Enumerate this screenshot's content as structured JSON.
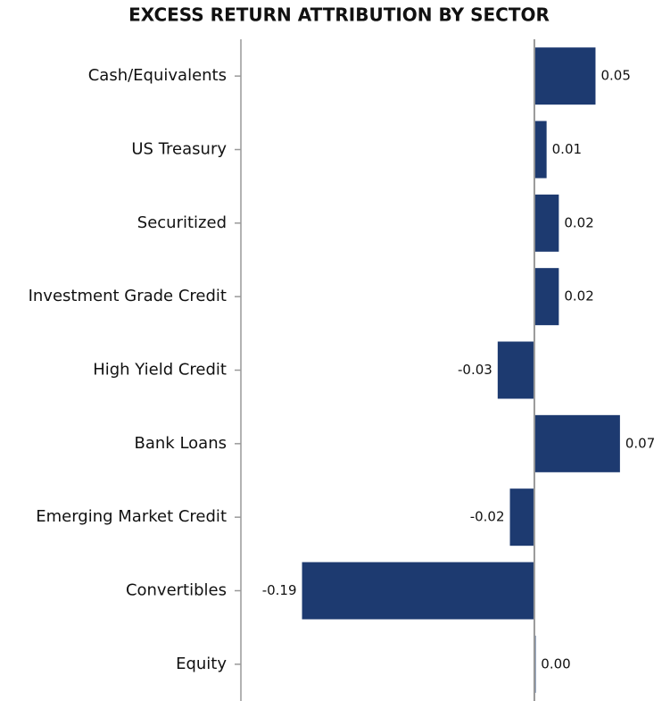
{
  "chart_data": {
    "type": "barh",
    "title": "EXCESS RETURN ATTRIBUTION BY SECTOR",
    "categories": [
      "Cash/Equivalents",
      "US Treasury",
      "Securitized",
      "Investment Grade Credit",
      "High Yield Credit",
      "Bank Loans",
      "Emerging Market Credit",
      "Convertibles",
      "Equity"
    ],
    "values": [
      0.05,
      0.01,
      0.02,
      0.02,
      -0.03,
      0.07,
      -0.02,
      -0.19,
      0.001
    ],
    "value_labels": [
      "0.05",
      "0.01",
      "0.02",
      "0.02",
      "-0.03",
      "0.07",
      "-0.02",
      "-0.19",
      "0.00"
    ],
    "color": "#1d3a70",
    "xlim": [
      -0.24,
      0.1
    ]
  }
}
